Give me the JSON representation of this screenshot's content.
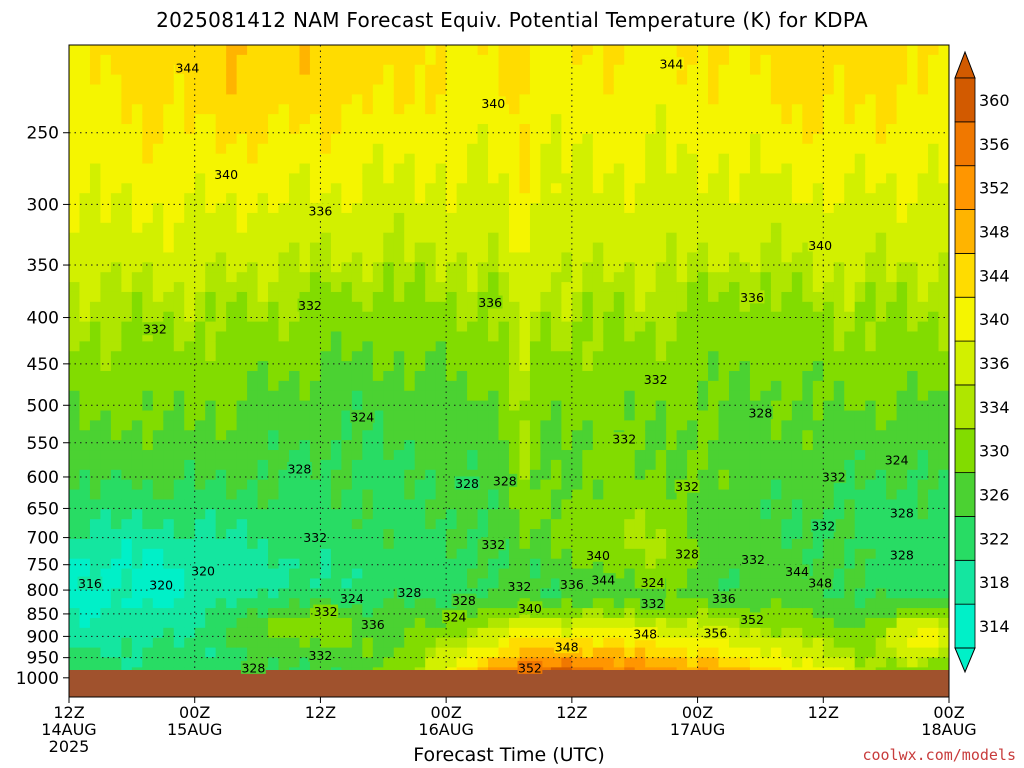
{
  "chart_data": {
    "type": "heatmap",
    "title": "2025081412 NAM Forecast Equiv. Potential Temperature (K) for KDPA",
    "xlabel": "Forecast Time (UTC)",
    "ylabel": "",
    "y_axis": {
      "scale": "log-pressure",
      "reversed": true,
      "ticks": [
        "250",
        "300",
        "350",
        "400",
        "450",
        "500",
        "550",
        "600",
        "650",
        "700",
        "750",
        "800",
        "850",
        "900",
        "950",
        "1000"
      ],
      "range_hPa": [
        1050,
        200
      ]
    },
    "x_axis": {
      "range_hours": [
        0,
        84
      ],
      "ticks": [
        {
          "hour": 0,
          "line1": "12Z",
          "line2": "14AUG",
          "line3": "2025"
        },
        {
          "hour": 12,
          "line1": "00Z",
          "line2": "15AUG",
          "line3": ""
        },
        {
          "hour": 24,
          "line1": "12Z",
          "line2": "",
          "line3": ""
        },
        {
          "hour": 36,
          "line1": "00Z",
          "line2": "16AUG",
          "line3": ""
        },
        {
          "hour": 48,
          "line1": "12Z",
          "line2": "",
          "line3": ""
        },
        {
          "hour": 60,
          "line1": "00Z",
          "line2": "17AUG",
          "line3": ""
        },
        {
          "hour": 72,
          "line1": "12Z",
          "line2": "",
          "line3": ""
        },
        {
          "hour": 84,
          "line1": "00Z",
          "line2": "18AUG",
          "line3": ""
        }
      ]
    },
    "grid": true,
    "colorbar": {
      "levels": [
        314,
        318,
        322,
        326,
        330,
        334,
        336,
        340,
        344,
        348,
        352,
        356,
        360
      ],
      "colors": [
        "#00f0c8",
        "#14e6a0",
        "#28dc64",
        "#4bd232",
        "#82dc00",
        "#afe600",
        "#d2f000",
        "#f5f500",
        "#ffdc00",
        "#ffb400",
        "#ff9600",
        "#f07800",
        "#d25a00"
      ],
      "labels": [
        "314",
        "318",
        "322",
        "326",
        "330",
        "334",
        "336",
        "340",
        "344",
        "348",
        "352",
        "356",
        "360"
      ]
    },
    "contour_labels": [
      {
        "text": "344",
        "hour": 11.3,
        "hPa": 212
      },
      {
        "text": "344",
        "hour": 57.5,
        "hPa": 210
      },
      {
        "text": "340",
        "hour": 40.5,
        "hPa": 232
      },
      {
        "text": "340",
        "hour": 15.0,
        "hPa": 278
      },
      {
        "text": "340",
        "hour": 71.7,
        "hPa": 333
      },
      {
        "text": "336",
        "hour": 24.0,
        "hPa": 305
      },
      {
        "text": "336",
        "hour": 40.2,
        "hPa": 385
      },
      {
        "text": "336",
        "hour": 65.2,
        "hPa": 380
      },
      {
        "text": "332",
        "hour": 23.0,
        "hPa": 388
      },
      {
        "text": "332",
        "hour": 8.2,
        "hPa": 412
      },
      {
        "text": "332",
        "hour": 56.0,
        "hPa": 468
      },
      {
        "text": "332",
        "hour": 53.0,
        "hPa": 545
      },
      {
        "text": "332",
        "hour": 59.0,
        "hPa": 615
      },
      {
        "text": "332",
        "hour": 73.0,
        "hPa": 600
      },
      {
        "text": "332",
        "hour": 72.0,
        "hPa": 680
      },
      {
        "text": "332",
        "hour": 23.5,
        "hPa": 700
      },
      {
        "text": "332",
        "hour": 40.5,
        "hPa": 712
      },
      {
        "text": "332",
        "hour": 65.3,
        "hPa": 740
      },
      {
        "text": "332",
        "hour": 43.0,
        "hPa": 793
      },
      {
        "text": "332",
        "hour": 55.7,
        "hPa": 828
      },
      {
        "text": "332",
        "hour": 24.5,
        "hPa": 845
      },
      {
        "text": "332",
        "hour": 24.0,
        "hPa": 945
      },
      {
        "text": "328",
        "hour": 66.0,
        "hPa": 510
      },
      {
        "text": "328",
        "hour": 22.0,
        "hPa": 588
      },
      {
        "text": "328",
        "hour": 38.0,
        "hPa": 610
      },
      {
        "text": "328",
        "hour": 41.6,
        "hPa": 606
      },
      {
        "text": "328",
        "hour": 79.5,
        "hPa": 658
      },
      {
        "text": "328",
        "hour": 79.5,
        "hPa": 732
      },
      {
        "text": "328",
        "hour": 59.0,
        "hPa": 730
      },
      {
        "text": "328",
        "hour": 32.5,
        "hPa": 805
      },
      {
        "text": "328",
        "hour": 37.7,
        "hPa": 822
      },
      {
        "text": "328",
        "hour": 17.6,
        "hPa": 975
      },
      {
        "text": "324",
        "hour": 28.0,
        "hPa": 515
      },
      {
        "text": "324",
        "hour": 79.0,
        "hPa": 575
      },
      {
        "text": "324",
        "hour": 55.7,
        "hPa": 785
      },
      {
        "text": "324",
        "hour": 27.0,
        "hPa": 817
      },
      {
        "text": "324",
        "hour": 36.8,
        "hPa": 857
      },
      {
        "text": "320",
        "hour": 12.8,
        "hPa": 762
      },
      {
        "text": "320",
        "hour": 8.8,
        "hPa": 790
      },
      {
        "text": "316",
        "hour": 2.0,
        "hPa": 787
      },
      {
        "text": "340",
        "hour": 50.5,
        "hPa": 733
      },
      {
        "text": "344",
        "hour": 51.0,
        "hPa": 780
      },
      {
        "text": "336",
        "hour": 48.0,
        "hPa": 789
      },
      {
        "text": "336",
        "hour": 62.5,
        "hPa": 817
      },
      {
        "text": "344",
        "hour": 69.5,
        "hPa": 763
      },
      {
        "text": "348",
        "hour": 71.7,
        "hPa": 786
      },
      {
        "text": "340",
        "hour": 44.0,
        "hPa": 838
      },
      {
        "text": "336",
        "hour": 29.0,
        "hPa": 873
      },
      {
        "text": "348",
        "hour": 47.5,
        "hPa": 925
      },
      {
        "text": "348",
        "hour": 55.0,
        "hPa": 895
      },
      {
        "text": "352",
        "hour": 65.2,
        "hPa": 862
      },
      {
        "text": "356",
        "hour": 61.7,
        "hPa": 892
      },
      {
        "text": "352",
        "hour": 44.0,
        "hPa": 975
      }
    ]
  },
  "credit": "coolwx.com/models"
}
